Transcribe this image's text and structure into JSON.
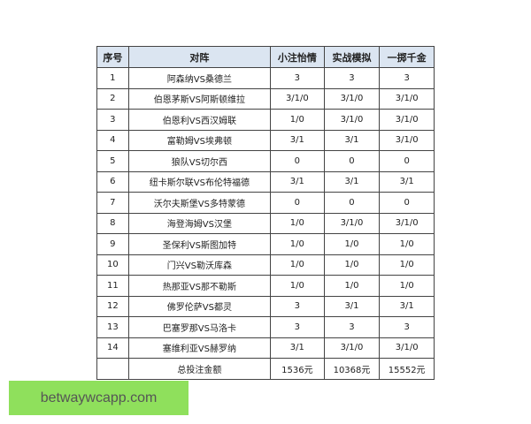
{
  "table": {
    "headers": [
      "序号",
      "对阵",
      "小注怡情",
      "实战模拟",
      "一掷千金"
    ],
    "rows": [
      [
        "1",
        "阿森纳VS桑德兰",
        "3",
        "3",
        "3"
      ],
      [
        "2",
        "伯恩茅斯VS阿斯顿维拉",
        "3/1/0",
        "3/1/0",
        "3/1/0"
      ],
      [
        "3",
        "伯恩利VS西汉姆联",
        "1/0",
        "3/1/0",
        "3/1/0"
      ],
      [
        "4",
        "富勒姆VS埃弗顿",
        "3/1",
        "3/1",
        "3/1/0"
      ],
      [
        "5",
        "狼队VS切尔西",
        "0",
        "0",
        "0"
      ],
      [
        "6",
        "纽卡斯尔联VS布伦特福德",
        "3/1",
        "3/1",
        "3/1"
      ],
      [
        "7",
        "沃尔夫斯堡VS多特蒙德",
        "0",
        "0",
        "0"
      ],
      [
        "8",
        "海登海姆VS汉堡",
        "1/0",
        "3/1/0",
        "3/1/0"
      ],
      [
        "9",
        "圣保利VS斯图加特",
        "1/0",
        "1/0",
        "1/0"
      ],
      [
        "10",
        "门兴VS勒沃库森",
        "1/0",
        "1/0",
        "1/0"
      ],
      [
        "11",
        "热那亚VS那不勒斯",
        "1/0",
        "1/0",
        "1/0"
      ],
      [
        "12",
        "佛罗伦萨VS都灵",
        "3",
        "3/1",
        "3/1"
      ],
      [
        "13",
        "巴塞罗那VS马洛卡",
        "3",
        "3",
        "3"
      ],
      [
        "14",
        "塞维利亚VS赫罗纳",
        "3/1",
        "3/1/0",
        "3/1/0"
      ]
    ],
    "total": {
      "label": "总投注金额",
      "values": [
        "1536元",
        "10368元",
        "15552元"
      ]
    }
  },
  "watermark": {
    "text": "betwaywcapp.com",
    "color": "#8fe05c"
  }
}
